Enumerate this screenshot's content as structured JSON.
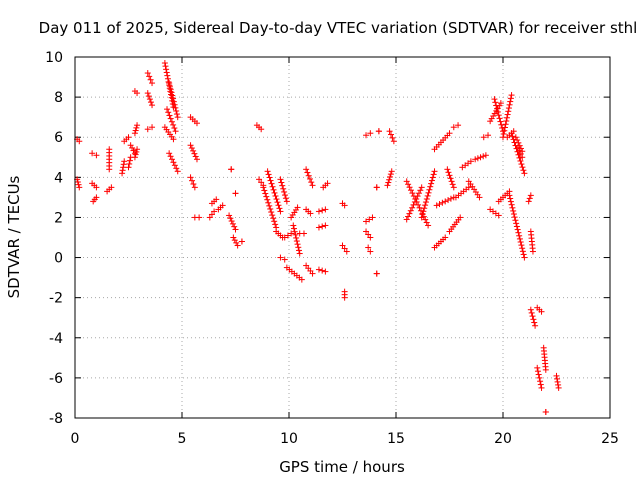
{
  "chart_data": {
    "type": "scatter",
    "title": "Day 011 of 2025, Sidereal Day-to-day VTEC variation (SDTVAR) for receiver sthl",
    "xlabel": "GPS time / hours",
    "ylabel": "SDTVAR / TECUs",
    "xlim": [
      0,
      25
    ],
    "ylim": [
      -8,
      10
    ],
    "grid": true,
    "marker": "+",
    "series_color": "#ff0000",
    "x_ticks": [
      0,
      5,
      10,
      15,
      20,
      25
    ],
    "x_tick_labels": [
      "0",
      "5",
      "10",
      "15",
      "20",
      "25"
    ],
    "y_ticks": [
      -8,
      -6,
      -4,
      -2,
      0,
      2,
      4,
      6,
      8,
      10
    ],
    "y_tick_labels": [
      "-8",
      "-6",
      "-4",
      "-2",
      "0",
      "2",
      "4",
      "6",
      "8",
      "10"
    ],
    "tracks": [
      {
        "x": [
          0.1,
          0.2
        ],
        "y": [
          3.9,
          3.5
        ]
      },
      {
        "x": [
          0.1,
          0.2
        ],
        "y": [
          5.9,
          5.8
        ]
      },
      {
        "x": [
          0.8,
          1.0
        ],
        "y": [
          5.2,
          5.1
        ]
      },
      {
        "x": [
          0.8,
          1.0
        ],
        "y": [
          3.7,
          3.5
        ]
      },
      {
        "x": [
          0.85,
          1.0
        ],
        "y": [
          2.8,
          3.0
        ]
      },
      {
        "x": [
          1.6,
          1.6
        ],
        "y": [
          5.4,
          4.4
        ]
      },
      {
        "x": [
          1.5,
          1.7
        ],
        "y": [
          3.3,
          3.5
        ]
      },
      {
        "x": [
          2.2,
          2.3
        ],
        "y": [
          4.2,
          4.8
        ]
      },
      {
        "x": [
          2.3,
          2.5
        ],
        "y": [
          5.8,
          6.0
        ]
      },
      {
        "x": [
          2.5,
          2.6
        ],
        "y": [
          4.5,
          5.0
        ]
      },
      {
        "x": [
          2.6,
          2.8
        ],
        "y": [
          5.6,
          5.2
        ]
      },
      {
        "x": [
          2.8,
          2.9
        ],
        "y": [
          5.0,
          5.4
        ]
      },
      {
        "x": [
          2.8,
          2.9
        ],
        "y": [
          6.2,
          6.6
        ]
      },
      {
        "x": [
          2.8,
          2.9
        ],
        "y": [
          8.3,
          8.2
        ]
      },
      {
        "x": [
          3.4,
          3.6
        ],
        "y": [
          9.2,
          8.7
        ]
      },
      {
        "x": [
          3.4,
          3.6
        ],
        "y": [
          8.2,
          7.6
        ]
      },
      {
        "x": [
          3.4,
          3.6
        ],
        "y": [
          6.4,
          6.5
        ]
      },
      {
        "x": [
          4.2,
          4.6
        ],
        "y": [
          9.7,
          7.5
        ]
      },
      {
        "x": [
          4.2,
          4.6
        ],
        "y": [
          6.5,
          5.9
        ]
      },
      {
        "x": [
          4.4,
          4.8
        ],
        "y": [
          8.7,
          7.0
        ]
      },
      {
        "x": [
          4.3,
          4.7
        ],
        "y": [
          7.4,
          6.3
        ]
      },
      {
        "x": [
          4.4,
          4.8
        ],
        "y": [
          5.2,
          4.3
        ]
      },
      {
        "x": [
          5.4,
          5.7
        ],
        "y": [
          7.0,
          6.7
        ]
      },
      {
        "x": [
          5.4,
          5.7
        ],
        "y": [
          5.6,
          4.9
        ]
      },
      {
        "x": [
          5.4,
          5.6
        ],
        "y": [
          4.0,
          3.5
        ]
      },
      {
        "x": [
          5.6,
          5.8
        ],
        "y": [
          2.0,
          2.0
        ]
      },
      {
        "x": [
          6.3,
          6.5
        ],
        "y": [
          2.0,
          2.3
        ]
      },
      {
        "x": [
          6.4,
          6.6
        ],
        "y": [
          2.7,
          2.9
        ]
      },
      {
        "x": [
          6.7,
          6.9
        ],
        "y": [
          2.4,
          2.6
        ]
      },
      {
        "x": [
          7.2,
          7.5
        ],
        "y": [
          2.1,
          1.4
        ]
      },
      {
        "x": [
          7.4,
          7.6
        ],
        "y": [
          1.0,
          0.6
        ]
      },
      {
        "x": [
          7.8,
          7.8
        ],
        "y": [
          0.8,
          0.8
        ]
      },
      {
        "x": [
          7.3,
          7.3
        ],
        "y": [
          4.4,
          4.4
        ]
      },
      {
        "x": [
          7.5,
          7.5
        ],
        "y": [
          3.2,
          3.2
        ]
      },
      {
        "x": [
          8.5,
          8.7
        ],
        "y": [
          6.6,
          6.4
        ]
      },
      {
        "x": [
          8.6,
          8.8
        ],
        "y": [
          3.9,
          3.6
        ]
      },
      {
        "x": [
          8.8,
          9.4
        ],
        "y": [
          3.5,
          1.5
        ]
      },
      {
        "x": [
          9.0,
          9.6
        ],
        "y": [
          4.3,
          2.3
        ]
      },
      {
        "x": [
          9.4,
          9.7
        ],
        "y": [
          1.3,
          1.0
        ]
      },
      {
        "x": [
          9.6,
          9.8
        ],
        "y": [
          0.0,
          -0.1
        ]
      },
      {
        "x": [
          9.6,
          9.9
        ],
        "y": [
          3.9,
          2.8
        ]
      },
      {
        "x": [
          9.8,
          10.1
        ],
        "y": [
          1.0,
          1.2
        ]
      },
      {
        "x": [
          9.9,
          10.6
        ],
        "y": [
          -0.5,
          -1.1
        ]
      },
      {
        "x": [
          10.1,
          10.4
        ],
        "y": [
          2.0,
          2.5
        ]
      },
      {
        "x": [
          10.2,
          10.5
        ],
        "y": [
          1.6,
          0.2
        ]
      },
      {
        "x": [
          10.5,
          10.7
        ],
        "y": [
          1.2,
          1.2
        ]
      },
      {
        "x": [
          10.8,
          11.1
        ],
        "y": [
          4.4,
          3.6
        ]
      },
      {
        "x": [
          10.8,
          11.0
        ],
        "y": [
          2.4,
          2.2
        ]
      },
      {
        "x": [
          10.8,
          11.1
        ],
        "y": [
          -0.4,
          -0.8
        ]
      },
      {
        "x": [
          11.4,
          11.7
        ],
        "y": [
          2.3,
          2.4
        ]
      },
      {
        "x": [
          11.4,
          11.7
        ],
        "y": [
          1.5,
          1.6
        ]
      },
      {
        "x": [
          11.4,
          11.7
        ],
        "y": [
          -0.6,
          -0.7
        ]
      },
      {
        "x": [
          11.6,
          11.8
        ],
        "y": [
          3.5,
          3.7
        ]
      },
      {
        "x": [
          12.5,
          12.6
        ],
        "y": [
          2.7,
          2.6
        ]
      },
      {
        "x": [
          12.5,
          12.7
        ],
        "y": [
          0.6,
          0.3
        ]
      },
      {
        "x": [
          12.6,
          12.6
        ],
        "y": [
          -1.7,
          -2.0
        ]
      },
      {
        "x": [
          13.6,
          13.8
        ],
        "y": [
          6.1,
          6.2
        ]
      },
      {
        "x": [
          13.6,
          13.9
        ],
        "y": [
          1.8,
          2.0
        ]
      },
      {
        "x": [
          13.6,
          13.8
        ],
        "y": [
          1.3,
          1.0
        ]
      },
      {
        "x": [
          13.7,
          13.8
        ],
        "y": [
          0.5,
          0.3
        ]
      },
      {
        "x": [
          14.2,
          14.2
        ],
        "y": [
          6.3,
          6.3
        ]
      },
      {
        "x": [
          14.1,
          14.1
        ],
        "y": [
          3.5,
          3.5
        ]
      },
      {
        "x": [
          14.1,
          14.1
        ],
        "y": [
          -0.8,
          -0.8
        ]
      },
      {
        "x": [
          14.6,
          14.8
        ],
        "y": [
          3.6,
          4.3
        ]
      },
      {
        "x": [
          14.7,
          14.9
        ],
        "y": [
          6.3,
          5.8
        ]
      },
      {
        "x": [
          15.5,
          16.5
        ],
        "y": [
          3.8,
          1.6
        ]
      },
      {
        "x": [
          15.5,
          16.2
        ],
        "y": [
          1.9,
          3.5
        ]
      },
      {
        "x": [
          16.2,
          16.8
        ],
        "y": [
          2.0,
          4.3
        ]
      },
      {
        "x": [
          16.8,
          17.5
        ],
        "y": [
          5.4,
          6.2
        ]
      },
      {
        "x": [
          16.8,
          17.3
        ],
        "y": [
          0.5,
          1.0
        ]
      },
      {
        "x": [
          16.9,
          17.7
        ],
        "y": [
          2.6,
          3.0
        ]
      },
      {
        "x": [
          17.4,
          17.7
        ],
        "y": [
          4.4,
          3.5
        ]
      },
      {
        "x": [
          17.5,
          18.0
        ],
        "y": [
          1.3,
          2.0
        ]
      },
      {
        "x": [
          17.7,
          17.9
        ],
        "y": [
          6.5,
          6.6
        ]
      },
      {
        "x": [
          17.8,
          18.4
        ],
        "y": [
          3.0,
          3.5
        ]
      },
      {
        "x": [
          18.1,
          18.5
        ],
        "y": [
          4.5,
          4.8
        ]
      },
      {
        "x": [
          18.4,
          18.9
        ],
        "y": [
          3.8,
          3.0
        ]
      },
      {
        "x": [
          18.7,
          19.2
        ],
        "y": [
          4.9,
          5.1
        ]
      },
      {
        "x": [
          19.1,
          19.3
        ],
        "y": [
          6.0,
          6.1
        ]
      },
      {
        "x": [
          19.4,
          19.9
        ],
        "y": [
          6.8,
          7.7
        ]
      },
      {
        "x": [
          19.4,
          19.8
        ],
        "y": [
          2.4,
          2.1
        ]
      },
      {
        "x": [
          19.6,
          20.0
        ],
        "y": [
          7.9,
          6.3
        ]
      },
      {
        "x": [
          19.8,
          20.3
        ],
        "y": [
          2.8,
          3.3
        ]
      },
      {
        "x": [
          20.0,
          20.4
        ],
        "y": [
          6.0,
          8.1
        ]
      },
      {
        "x": [
          20.2,
          20.5
        ],
        "y": [
          6.0,
          6.3
        ]
      },
      {
        "x": [
          20.4,
          21.0
        ],
        "y": [
          6.2,
          4.2
        ]
      },
      {
        "x": [
          20.3,
          21.0
        ],
        "y": [
          3.1,
          0.0
        ]
      },
      {
        "x": [
          20.6,
          20.9
        ],
        "y": [
          6.0,
          5.3
        ]
      },
      {
        "x": [
          20.7,
          20.9
        ],
        "y": [
          5.5,
          5.0
        ]
      },
      {
        "x": [
          21.2,
          21.3
        ],
        "y": [
          2.8,
          3.1
        ]
      },
      {
        "x": [
          21.3,
          21.4
        ],
        "y": [
          1.3,
          0.3
        ]
      },
      {
        "x": [
          21.3,
          21.5
        ],
        "y": [
          -2.6,
          -3.4
        ]
      },
      {
        "x": [
          21.6,
          21.8
        ],
        "y": [
          -2.5,
          -2.7
        ]
      },
      {
        "x": [
          21.6,
          21.8
        ],
        "y": [
          -5.5,
          -6.5
        ]
      },
      {
        "x": [
          21.9,
          22.0
        ],
        "y": [
          -4.5,
          -5.6
        ]
      },
      {
        "x": [
          22.0,
          22.0
        ],
        "y": [
          -7.7,
          -7.7
        ]
      },
      {
        "x": [
          22.5,
          22.6
        ],
        "y": [
          -5.9,
          -6.5
        ]
      }
    ]
  }
}
